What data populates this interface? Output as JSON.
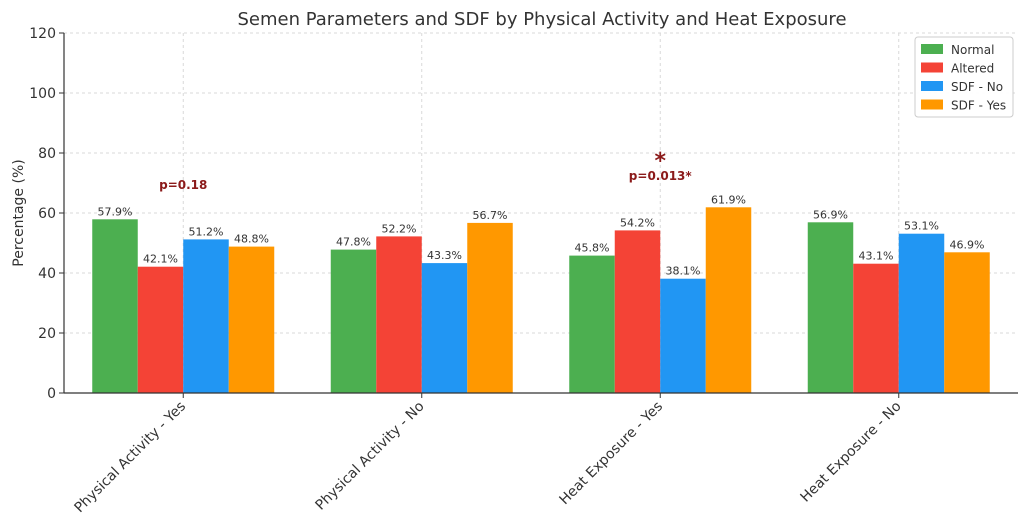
{
  "chart_data": {
    "type": "bar",
    "title": "Semen Parameters and SDF by Physical Activity and Heat Exposure",
    "xlabel": "",
    "ylabel": "Percentage (%)",
    "ylim": [
      0,
      120
    ],
    "yticks": [
      "0",
      "20",
      "40",
      "60",
      "80",
      "100",
      "120"
    ],
    "grid": true,
    "legend_position": "top-right",
    "categories": [
      "Physical Activity - Yes",
      "Physical Activity - No",
      "Heat Exposure - Yes",
      "Heat Exposure - No"
    ],
    "series": [
      {
        "name": "Normal",
        "color": "#4caf50",
        "values": [
          57.9,
          47.8,
          45.8,
          56.9
        ],
        "labels": [
          "57.9%",
          "47.8%",
          "45.8%",
          "56.9%"
        ]
      },
      {
        "name": "Altered",
        "color": "#f44336",
        "values": [
          42.1,
          52.2,
          54.2,
          43.1
        ],
        "labels": [
          "42.1%",
          "52.2%",
          "54.2%",
          "43.1%"
        ]
      },
      {
        "name": "SDF - No",
        "color": "#2196f3",
        "values": [
          51.2,
          43.3,
          38.1,
          53.1
        ],
        "labels": [
          "51.2%",
          "43.3%",
          "38.1%",
          "53.1%"
        ]
      },
      {
        "name": "SDF - Yes",
        "color": "#ff9800",
        "values": [
          48.8,
          56.7,
          61.9,
          46.9
        ],
        "labels": [
          "48.8%",
          "56.7%",
          "61.9%",
          "46.9%"
        ]
      }
    ],
    "annotations": [
      {
        "text": "p=0.18",
        "category_index": 0,
        "y": 68
      },
      {
        "text": "p=0.013*",
        "category_index": 2,
        "y": 71
      },
      {
        "text": "*",
        "category_index": 2,
        "y": 77
      }
    ]
  }
}
